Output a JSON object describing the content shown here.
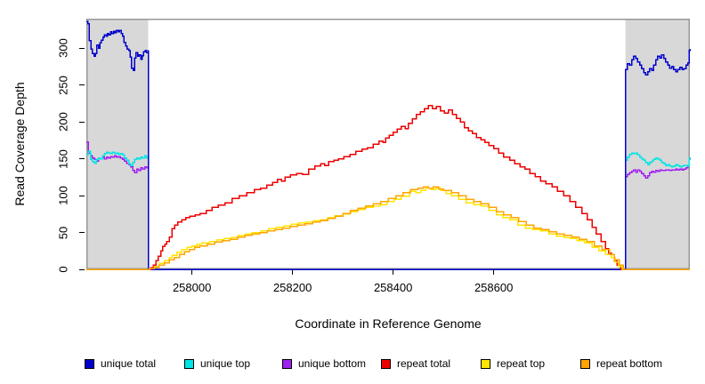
{
  "figure_title": "",
  "colors": {
    "background": "#ffffff",
    "masked_region": "#d8d8d8",
    "plot_border": "#989898",
    "axis": "#000000"
  },
  "legend": {
    "items": [
      {
        "label": "unique total",
        "color": "#0000cd"
      },
      {
        "label": "unique top",
        "color": "#00e5e5"
      },
      {
        "label": "unique bottom",
        "color": "#a020f0"
      },
      {
        "label": "repeat total",
        "color": "#ee0000"
      },
      {
        "label": "repeat top",
        "color": "#ffe600"
      },
      {
        "label": "repeat bottom",
        "color": "#ffa500"
      }
    ]
  },
  "chart_data": {
    "type": "line",
    "title": "",
    "xlabel": "Coordinate in Reference Genome",
    "ylabel": "Read Coverage Depth",
    "xlim": [
      257790,
      258990
    ],
    "ylim": [
      0,
      340
    ],
    "x_ticks": [
      258000,
      258200,
      258400,
      258600
    ],
    "y_ticks": [
      0,
      50,
      100,
      150,
      200,
      250,
      300
    ],
    "grid": false,
    "legend_position": "bottom",
    "step_interpolation": true,
    "shaded_regions": [
      {
        "x0": 257790,
        "x1": 257913
      },
      {
        "x0": 258862,
        "x1": 258990
      }
    ],
    "series": [
      {
        "name": "unique bottom",
        "color": "#a020f0",
        "xy": [
          257790,
          173,
          257794,
          158,
          257798,
          154,
          257802,
          151,
          257806,
          149,
          257810,
          147,
          257814,
          151,
          257818,
          150,
          257822,
          152,
          257826,
          150,
          257830,
          152,
          257834,
          151,
          257838,
          153,
          257842,
          152,
          257846,
          154,
          257850,
          152,
          257854,
          153,
          257858,
          151,
          257862,
          149,
          257866,
          147,
          257870,
          144,
          257874,
          142,
          257878,
          139,
          257882,
          134,
          257886,
          131,
          257890,
          136,
          257894,
          134,
          257898,
          138,
          257902,
          136,
          257906,
          139,
          257910,
          138,
          257913,
          137,
          257913,
          0,
          258862,
          0,
          258862,
          126,
          258866,
          129,
          258870,
          131,
          258874,
          133,
          258878,
          135,
          258882,
          132,
          258886,
          135,
          258890,
          133,
          258894,
          130,
          258898,
          127,
          258902,
          124,
          258906,
          127,
          258910,
          131,
          258914,
          133,
          258918,
          132,
          258922,
          134,
          258926,
          133,
          258930,
          135,
          258934,
          134,
          258938,
          134,
          258942,
          135,
          258946,
          135,
          258950,
          134,
          258954,
          135,
          258958,
          135,
          258962,
          136,
          258966,
          135,
          258970,
          136,
          258974,
          135,
          258978,
          136,
          258982,
          138,
          258986,
          141,
          258989,
          150,
          258990,
          152
        ]
      },
      {
        "name": "unique top",
        "color": "#00e5e5",
        "xy": [
          257790,
          156,
          257794,
          160,
          257798,
          149,
          257802,
          146,
          257806,
          144,
          257810,
          149,
          257814,
          151,
          257818,
          150,
          257822,
          154,
          257826,
          157,
          257830,
          159,
          257834,
          158,
          257838,
          157,
          257842,
          159,
          257846,
          157,
          257850,
          158,
          257854,
          156,
          257858,
          157,
          257862,
          155,
          257866,
          151,
          257870,
          148,
          257874,
          143,
          257878,
          141,
          257882,
          145,
          257886,
          149,
          257890,
          151,
          257894,
          150,
          257898,
          152,
          257902,
          151,
          257906,
          154,
          257910,
          151,
          257913,
          150,
          257913,
          0,
          258862,
          0,
          258862,
          148,
          258866,
          152,
          258870,
          156,
          258874,
          158,
          258878,
          157,
          258882,
          158,
          258886,
          155,
          258890,
          152,
          258894,
          150,
          258898,
          148,
          258902,
          145,
          258906,
          142,
          258910,
          145,
          258914,
          147,
          258918,
          149,
          258922,
          151,
          258926,
          150,
          258930,
          148,
          258934,
          145,
          258938,
          143,
          258942,
          141,
          258946,
          142,
          258950,
          140,
          258954,
          139,
          258958,
          140,
          258962,
          142,
          258966,
          141,
          258970,
          139,
          258974,
          140,
          258978,
          141,
          258982,
          141,
          258986,
          140,
          258989,
          151,
          258990,
          152
        ]
      },
      {
        "name": "unique total",
        "color": "#0000cd",
        "xy": [
          257790,
          336,
          257793,
          333,
          257796,
          310,
          257799,
          299,
          257802,
          293,
          257805,
          289,
          257808,
          293,
          257811,
          304,
          257814,
          300,
          257817,
          307,
          257820,
          311,
          257823,
          315,
          257826,
          318,
          257829,
          316,
          257832,
          320,
          257835,
          318,
          257838,
          322,
          257841,
          320,
          257844,
          323,
          257847,
          321,
          257850,
          324,
          257853,
          322,
          257856,
          324,
          257859,
          320,
          257862,
          316,
          257865,
          308,
          257868,
          303,
          257871,
          299,
          257874,
          297,
          257877,
          288,
          257880,
          273,
          257883,
          270,
          257886,
          287,
          257889,
          294,
          257892,
          289,
          257895,
          291,
          257898,
          285,
          257901,
          290,
          257904,
          295,
          257907,
          297,
          257910,
          294,
          257913,
          297,
          257913,
          0,
          258862,
          0,
          258862,
          271,
          258866,
          279,
          258870,
          277,
          258874,
          284,
          258878,
          289,
          258882,
          286,
          258886,
          281,
          258890,
          277,
          258894,
          272,
          258898,
          267,
          258902,
          264,
          258906,
          268,
          258910,
          272,
          258914,
          270,
          258918,
          277,
          258922,
          284,
          258926,
          289,
          258930,
          287,
          258934,
          291,
          258938,
          286,
          258942,
          281,
          258946,
          277,
          258950,
          273,
          258954,
          275,
          258958,
          271,
          258962,
          268,
          258966,
          271,
          258970,
          274,
          258974,
          271,
          258978,
          272,
          258982,
          277,
          258986,
          280,
          258989,
          297,
          258990,
          299
        ]
      },
      {
        "name": "repeat total",
        "color": "#ee0000",
        "xy": [
          257790,
          0,
          257913,
          0,
          257918,
          2,
          257923,
          6,
          257928,
          12,
          257933,
          18,
          257938,
          25,
          257942,
          31,
          257946,
          34,
          257950,
          38,
          257955,
          44,
          257960,
          55,
          257966,
          60,
          257972,
          64,
          257980,
          67,
          257988,
          70,
          257996,
          72,
          258006,
          74,
          258016,
          76,
          258028,
          80,
          258040,
          84,
          258052,
          87,
          258066,
          90,
          258080,
          96,
          258094,
          100,
          258109,
          104,
          258124,
          108,
          258136,
          110,
          258149,
          114,
          258160,
          118,
          258170,
          122,
          258178,
          120,
          258185,
          125,
          258196,
          128,
          258208,
          130,
          258220,
          129,
          258232,
          136,
          258244,
          140,
          258256,
          143,
          258264,
          141,
          258272,
          146,
          258282,
          148,
          258291,
          150,
          258302,
          153,
          258314,
          156,
          258326,
          160,
          258338,
          163,
          258349,
          165,
          258360,
          170,
          258372,
          174,
          258380,
          172,
          258385,
          178,
          258392,
          182,
          258400,
          186,
          258408,
          190,
          258416,
          194,
          258424,
          191,
          258430,
          198,
          258438,
          204,
          258446,
          210,
          258454,
          214,
          258462,
          218,
          258470,
          222,
          258478,
          218,
          258486,
          221,
          258494,
          215,
          258502,
          212,
          258510,
          216,
          258518,
          210,
          258526,
          205,
          258534,
          200,
          258542,
          192,
          258550,
          188,
          258558,
          184,
          258566,
          179,
          258574,
          176,
          258582,
          172,
          258590,
          168,
          258600,
          164,
          258610,
          158,
          258620,
          152,
          258632,
          148,
          258642,
          143,
          258652,
          139,
          258662,
          136,
          258672,
          130,
          258682,
          126,
          258693,
          120,
          258704,
          116,
          258716,
          112,
          258727,
          106,
          258739,
          100,
          258751,
          92,
          258763,
          84,
          258775,
          76,
          258786,
          67,
          258796,
          57,
          258804,
          48,
          258813,
          38,
          258822,
          28,
          258828,
          22,
          258834,
          16,
          258840,
          11,
          258845,
          6,
          258852,
          0,
          258990,
          0
        ]
      },
      {
        "name": "repeat top",
        "color": "#ffe600",
        "xy": [
          257790,
          0,
          257913,
          0,
          257915,
          1,
          257925,
          4,
          257935,
          8,
          257945,
          12,
          257955,
          16,
          257960,
          19,
          257970,
          23,
          257980,
          27,
          257990,
          30,
          258000,
          32,
          258010,
          34,
          258020,
          36,
          258035,
          38,
          258050,
          40,
          258064,
          42,
          258078,
          43,
          258092,
          46,
          258106,
          48,
          258120,
          50,
          258137,
          52,
          258152,
          55,
          258167,
          57,
          258182,
          59,
          258197,
          61,
          258212,
          63,
          258227,
          64,
          258242,
          66,
          258256,
          67,
          258270,
          70,
          258284,
          73,
          258300,
          75,
          258314,
          78,
          258328,
          81,
          258344,
          84,
          258360,
          86,
          258374,
          88,
          258388,
          92,
          258402,
          95,
          258416,
          99,
          258433,
          106,
          258445,
          104,
          258455,
          107,
          258465,
          110,
          258475,
          108,
          258485,
          110,
          258495,
          107,
          258505,
          103,
          258516,
          100,
          258530,
          95,
          258545,
          90,
          258560,
          88,
          258574,
          86,
          258590,
          80,
          258605,
          74,
          258618,
          70,
          258632,
          67,
          258648,
          60,
          258663,
          56,
          258678,
          54,
          258693,
          52,
          258710,
          48,
          258725,
          45,
          258740,
          43,
          258751,
          42,
          258766,
          39,
          258781,
          36,
          258796,
          30,
          258809,
          25,
          258822,
          20,
          258834,
          16,
          258841,
          10,
          258848,
          4,
          258856,
          0,
          258990,
          0
        ]
      },
      {
        "name": "repeat bottom",
        "color": "#ffa500",
        "xy": [
          257790,
          0,
          257913,
          0,
          257915,
          1,
          257925,
          3,
          257935,
          6,
          257945,
          9,
          257955,
          13,
          257965,
          16,
          257975,
          20,
          257985,
          24,
          257995,
          27,
          258005,
          30,
          258015,
          32,
          258030,
          34,
          258045,
          37,
          258060,
          39,
          258075,
          41,
          258090,
          44,
          258105,
          46,
          258120,
          48,
          258135,
          50,
          258150,
          52,
          258165,
          54,
          258180,
          56,
          258195,
          58,
          258210,
          60,
          258225,
          62,
          258240,
          64,
          258255,
          66,
          258270,
          69,
          258285,
          72,
          258300,
          76,
          258315,
          80,
          258330,
          83,
          258345,
          86,
          258360,
          89,
          258375,
          92,
          258390,
          96,
          258405,
          100,
          258420,
          104,
          258435,
          108,
          258450,
          110,
          258460,
          112,
          258470,
          110,
          258480,
          112,
          258490,
          109,
          258500,
          107,
          258516,
          104,
          258530,
          100,
          258545,
          95,
          258560,
          92,
          258574,
          89,
          258590,
          84,
          258605,
          78,
          258620,
          74,
          258635,
          70,
          258650,
          65,
          258665,
          60,
          258680,
          56,
          258695,
          54,
          258710,
          51,
          258725,
          48,
          258740,
          46,
          258755,
          44,
          258770,
          41,
          258785,
          38,
          258800,
          32,
          258815,
          27,
          258830,
          20,
          258840,
          13,
          258850,
          6,
          258858,
          0,
          258990,
          0
        ]
      }
    ]
  }
}
